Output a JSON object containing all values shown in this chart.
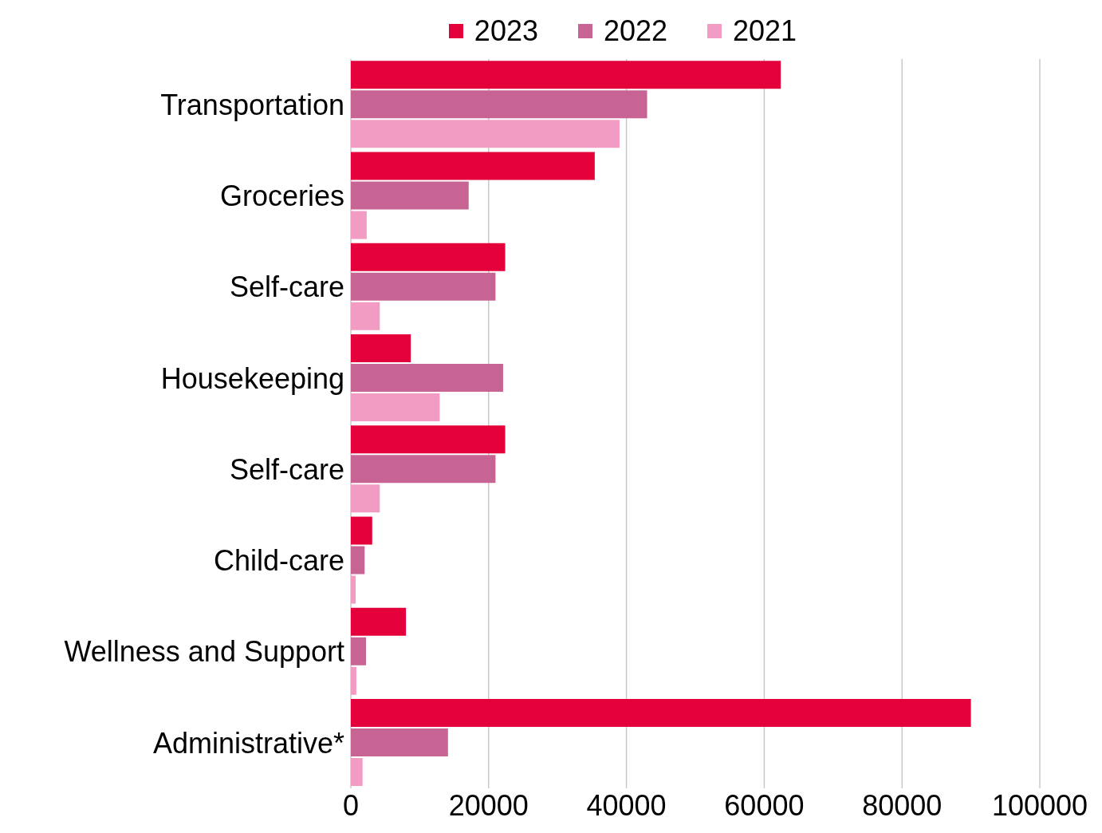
{
  "chart_data": {
    "type": "bar",
    "orientation": "horizontal",
    "categories": [
      "Transportation",
      "Groceries",
      "Self-care",
      "Housekeeping",
      "Self-care",
      "Child-care",
      "Wellness and Support",
      "Administrative*"
    ],
    "series": [
      {
        "name": "2023",
        "color": "#e4003b",
        "values": [
          62400,
          35400,
          22400,
          8700,
          22400,
          3100,
          8000,
          90000
        ]
      },
      {
        "name": "2022",
        "color": "#c86494",
        "values": [
          43000,
          17100,
          21000,
          22100,
          21000,
          2000,
          2200,
          14100
        ]
      },
      {
        "name": "2021",
        "color": "#f29cc3",
        "values": [
          39000,
          2300,
          4200,
          12900,
          4200,
          700,
          800,
          1700
        ]
      }
    ],
    "xlim": [
      0,
      100000
    ],
    "xticks": [
      0,
      20000,
      40000,
      60000,
      80000,
      100000
    ],
    "grid": "x",
    "legend": "top"
  }
}
